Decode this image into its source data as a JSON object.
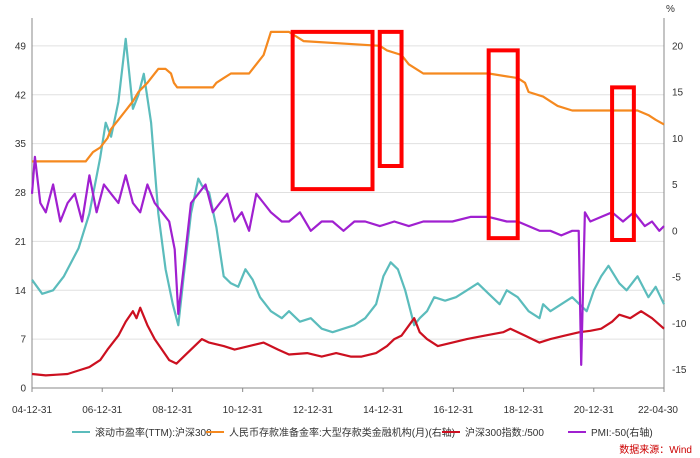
{
  "chart_data": {
    "type": "line",
    "title": "",
    "x_ticks": [
      "04-12-31",
      "06-12-31",
      "08-12-31",
      "10-12-31",
      "12-12-31",
      "14-12-31",
      "16-12-31",
      "18-12-31",
      "20-12-31",
      "22-04-30"
    ],
    "y_left_ticks": [
      "0",
      "7",
      "14",
      "21",
      "28",
      "35",
      "42",
      "49"
    ],
    "y_left_lim": [
      0,
      53
    ],
    "y_right_unit": "%",
    "y_right_ticks": [
      "-15",
      "-10",
      "-5",
      "0",
      "5",
      "10",
      "15",
      "20"
    ],
    "y_right_lim": [
      -17,
      23
    ],
    "series": [
      {
        "name": "滚动市盈率(TTM):沪深300",
        "axis": "left",
        "color": "#5bbcbc",
        "x": [
          2004.92,
          2005.2,
          2005.5,
          2005.8,
          2006.2,
          2006.5,
          2006.8,
          2006.95,
          2007.1,
          2007.3,
          2007.5,
          2007.7,
          2007.85,
          2008.0,
          2008.2,
          2008.4,
          2008.6,
          2008.8,
          2008.95,
          2009.1,
          2009.3,
          2009.5,
          2009.6,
          2009.8,
          2010.0,
          2010.2,
          2010.4,
          2010.6,
          2010.8,
          2011.0,
          2011.2,
          2011.5,
          2011.8,
          2012.0,
          2012.3,
          2012.6,
          2012.9,
          2013.2,
          2013.5,
          2013.8,
          2014.1,
          2014.4,
          2014.6,
          2014.8,
          2015.0,
          2015.2,
          2015.45,
          2015.6,
          2015.8,
          2016.0,
          2016.3,
          2016.6,
          2016.9,
          2017.2,
          2017.5,
          2017.8,
          2018.0,
          2018.3,
          2018.6,
          2018.9,
          2019.0,
          2019.2,
          2019.5,
          2019.8,
          2020.0,
          2020.2,
          2020.4,
          2020.6,
          2020.8,
          2021.1,
          2021.3,
          2021.6,
          2021.9,
          2022.1,
          2022.33
        ],
        "values": [
          15.5,
          13.5,
          14,
          16,
          20,
          25,
          33,
          38,
          36,
          41,
          50,
          40,
          42,
          45,
          38,
          25,
          17,
          12,
          9,
          16,
          25,
          30,
          29,
          28,
          23,
          16,
          15,
          14.5,
          17,
          15.5,
          13,
          11,
          10,
          11,
          9.5,
          10,
          8.5,
          8,
          8.5,
          9,
          10,
          12,
          16,
          18,
          17,
          14,
          9,
          10,
          11,
          13,
          12.5,
          13,
          14,
          15,
          13.5,
          12,
          14,
          13,
          11,
          10,
          12,
          11,
          12,
          13,
          12,
          11,
          14,
          16,
          17.5,
          15,
          14,
          16,
          13,
          14.5,
          12
        ]
      },
      {
        "name": "人民币存款准备金率:大型存款类金融机构(月)(右轴)",
        "axis": "right",
        "color": "#f5891f",
        "x": [
          2004.92,
          2006.4,
          2006.6,
          2006.8,
          2007.0,
          2007.1,
          2007.3,
          2007.5,
          2007.7,
          2007.85,
          2008.1,
          2008.4,
          2008.6,
          2008.75,
          2008.83,
          2008.92,
          2009.1,
          2009.4,
          2009.9,
          2010.0,
          2010.2,
          2010.4,
          2010.9,
          2011.1,
          2011.3,
          2011.5,
          2012.0,
          2012.2,
          2012.4,
          2014.5,
          2014.7,
          2015.1,
          2015.3,
          2015.5,
          2015.7,
          2016.2,
          2017.5,
          2018.3,
          2018.5,
          2018.6,
          2019.0,
          2019.2,
          2019.4,
          2019.8,
          2021.6,
          2021.9,
          2022.1,
          2022.33
        ],
        "values": [
          7.5,
          7.5,
          8.5,
          9,
          10,
          11,
          12,
          13,
          14,
          15,
          16,
          17.5,
          17.5,
          17,
          16,
          15.5,
          15.5,
          15.5,
          15.5,
          16,
          16.5,
          17,
          17,
          18,
          19,
          21.5,
          21.5,
          21,
          20.5,
          20,
          19.5,
          19,
          18,
          17.5,
          17,
          17,
          17,
          16.5,
          16,
          15,
          14.5,
          14,
          13.5,
          13,
          13,
          12.5,
          12,
          11.5
        ]
      },
      {
        "name": "沪深300指数:/500",
        "axis": "left",
        "color": "#cc1020",
        "x": [
          2004.92,
          2005.3,
          2005.6,
          2005.9,
          2006.2,
          2006.5,
          2006.8,
          2007.0,
          2007.3,
          2007.5,
          2007.7,
          2007.8,
          2007.9,
          2008.1,
          2008.3,
          2008.5,
          2008.7,
          2008.9,
          2009.1,
          2009.4,
          2009.6,
          2009.8,
          2010.2,
          2010.5,
          2010.9,
          2011.3,
          2011.7,
          2012.0,
          2012.5,
          2012.9,
          2013.3,
          2013.7,
          2014.0,
          2014.4,
          2014.7,
          2014.9,
          2015.1,
          2015.45,
          2015.6,
          2015.8,
          2016.1,
          2016.5,
          2016.9,
          2017.4,
          2017.9,
          2018.1,
          2018.5,
          2018.9,
          2019.2,
          2019.6,
          2020.0,
          2020.3,
          2020.6,
          2020.9,
          2021.1,
          2021.4,
          2021.7,
          2022.0,
          2022.33
        ],
        "values": [
          2,
          1.8,
          1.9,
          2,
          2.5,
          3,
          4,
          5.5,
          7.5,
          9.5,
          11,
          10,
          11.5,
          9,
          7,
          5.5,
          4,
          3.5,
          4.5,
          6,
          7,
          6.5,
          6,
          5.5,
          6,
          6.5,
          5.5,
          4.8,
          5,
          4.5,
          5,
          4.5,
          4.5,
          5,
          6,
          7,
          7.5,
          10,
          8,
          7,
          6,
          6.5,
          7,
          7.5,
          8,
          8.5,
          7.5,
          6.5,
          7,
          7.5,
          8,
          8.2,
          8.5,
          9.5,
          10.5,
          10,
          11,
          10,
          8.5
        ]
      },
      {
        "name": "PMI:-50(右轴)",
        "axis": "right",
        "color": "#a020d0",
        "x": [
          2004.92,
          2005.0,
          2005.15,
          2005.3,
          2005.5,
          2005.7,
          2005.9,
          2006.1,
          2006.3,
          2006.5,
          2006.7,
          2006.9,
          2007.1,
          2007.3,
          2007.5,
          2007.7,
          2007.9,
          2008.1,
          2008.3,
          2008.5,
          2008.7,
          2008.85,
          2008.95,
          2009.1,
          2009.3,
          2009.5,
          2009.7,
          2009.9,
          2010.1,
          2010.3,
          2010.5,
          2010.7,
          2010.9,
          2011.1,
          2011.3,
          2011.5,
          2011.8,
          2012.0,
          2012.3,
          2012.6,
          2012.9,
          2013.2,
          2013.5,
          2013.8,
          2014.1,
          2014.5,
          2014.9,
          2015.3,
          2015.7,
          2016.0,
          2016.5,
          2017.0,
          2017.5,
          2018.0,
          2018.3,
          2018.6,
          2018.9,
          2019.2,
          2019.5,
          2019.8,
          2019.98,
          2020.05,
          2020.15,
          2020.3,
          2020.6,
          2020.9,
          2021.2,
          2021.5,
          2021.8,
          2022.0,
          2022.2,
          2022.33
        ],
        "values": [
          4,
          8,
          3,
          2,
          5,
          1,
          3,
          4,
          1,
          6,
          2,
          5,
          4,
          3,
          6,
          3,
          2,
          5,
          3,
          2,
          1,
          -2,
          -9,
          -4,
          3,
          4,
          5,
          2,
          3,
          4,
          1,
          2,
          0,
          4,
          3,
          2,
          1,
          1,
          2,
          0,
          1,
          1,
          0,
          1,
          1,
          0.5,
          1,
          0.5,
          1,
          1,
          1,
          1.5,
          1.5,
          1,
          1,
          0.5,
          0,
          0,
          -0.5,
          0,
          0,
          -14.5,
          2,
          1,
          1.5,
          2,
          1,
          2,
          0.5,
          1,
          0,
          0.5
        ]
      }
    ],
    "highlights": [
      {
        "x0": 2012.1,
        "x1": 2014.3,
        "y0_right": 4.5,
        "y1_right": 21.5
      },
      {
        "x0": 2014.5,
        "x1": 2015.1,
        "y0_right": 7.0,
        "y1_right": 21.5
      },
      {
        "x0": 2017.5,
        "x1": 2018.3,
        "y0_right": -0.8,
        "y1_right": 19.5
      },
      {
        "x0": 2020.9,
        "x1": 2021.5,
        "y0_right": -1.0,
        "y1_right": 15.5
      }
    ],
    "highlight_color": "#ff0000",
    "legend_position": "bottom"
  },
  "source_note": "数据来源：Wind"
}
